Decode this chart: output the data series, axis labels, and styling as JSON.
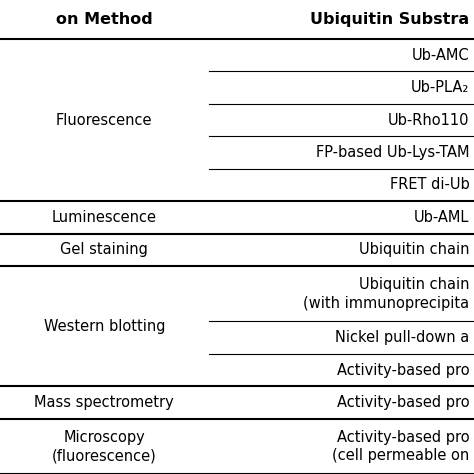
{
  "header_col1": "on Method",
  "header_col2": "Ubiquitin Substra",
  "rows": [
    {
      "substrate": "Ub-AMC",
      "group": "Fluorescence"
    },
    {
      "substrate": "Ub-PLA₂",
      "group": "Fluorescence"
    },
    {
      "substrate": "Ub-Rho110",
      "group": "Fluorescence"
    },
    {
      "substrate": "FP-based Ub-Lys-TAM",
      "group": "Fluorescence"
    },
    {
      "substrate": "FRET di-Ub",
      "group": "Fluorescence"
    },
    {
      "substrate": "Ub-AML",
      "group": "Luminescence"
    },
    {
      "substrate": "Ubiquitin chain",
      "group": "Gel staining"
    },
    {
      "substrate": "Ubiquitin chain\n(with immunoprecipita",
      "group": "Western blotting"
    },
    {
      "substrate": "Nickel pull-down a",
      "group": "Western blotting"
    },
    {
      "substrate": "Activity-based pro",
      "group": "Western blotting"
    },
    {
      "substrate": "Activity-based pro",
      "group": "Mass spectrometry"
    },
    {
      "substrate": "Activity-based pro\n(cell permeable on",
      "group": "Microscopy"
    }
  ],
  "groups": [
    {
      "name": "Fluorescence",
      "label": "Fluorescence",
      "start": 0,
      "end": 4
    },
    {
      "name": "Luminescence",
      "label": "Luminescence",
      "start": 5,
      "end": 5
    },
    {
      "name": "Gel staining",
      "label": "Gel staining",
      "start": 6,
      "end": 6
    },
    {
      "name": "Western blotting",
      "label": "Western blotting",
      "start": 7,
      "end": 9
    },
    {
      "name": "Mass spectrometry",
      "label": "Mass spectrometry",
      "start": 10,
      "end": 10
    },
    {
      "name": "Microscopy",
      "label": "Microscopy\n(fluorescence)",
      "start": 11,
      "end": 11
    }
  ],
  "row_heights_rel": [
    1,
    1,
    1,
    1,
    1,
    1,
    1,
    1.7,
    1,
    1,
    1,
    1.7
  ],
  "col_split": 0.44,
  "background": "#ffffff",
  "text_color": "#000000",
  "line_color": "#000000",
  "font_size": 10.5,
  "header_font_size": 11.5,
  "thick_lw": 1.5,
  "thin_lw": 0.8
}
